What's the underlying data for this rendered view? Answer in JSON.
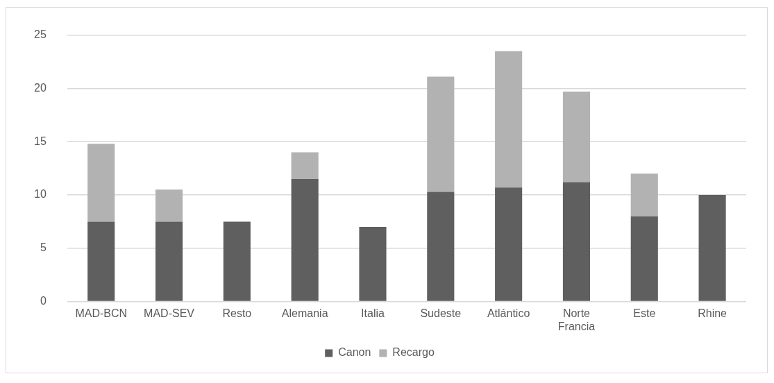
{
  "chart_data": {
    "type": "bar",
    "stacked": true,
    "categories": [
      "MAD-BCN",
      "MAD-SEV",
      "Resto",
      "Alemania",
      "Italia",
      "Sudeste",
      "Atlántico",
      "Norte Francia",
      "Este",
      "Rhine"
    ],
    "series": [
      {
        "name": "Canon",
        "color": "#5f5f5f",
        "values": [
          7.5,
          7.5,
          7.5,
          11.5,
          7,
          10.3,
          10.7,
          11.2,
          8,
          10
        ]
      },
      {
        "name": "Recargo",
        "color": "#b2b2b2",
        "values": [
          7.3,
          3,
          null,
          2.5,
          null,
          10.8,
          12.8,
          8.5,
          4,
          null
        ]
      }
    ],
    "ylim": [
      0,
      25
    ],
    "yticks": [
      0,
      5,
      10,
      15,
      20,
      25
    ],
    "grid": "y",
    "legend": "bottom"
  }
}
